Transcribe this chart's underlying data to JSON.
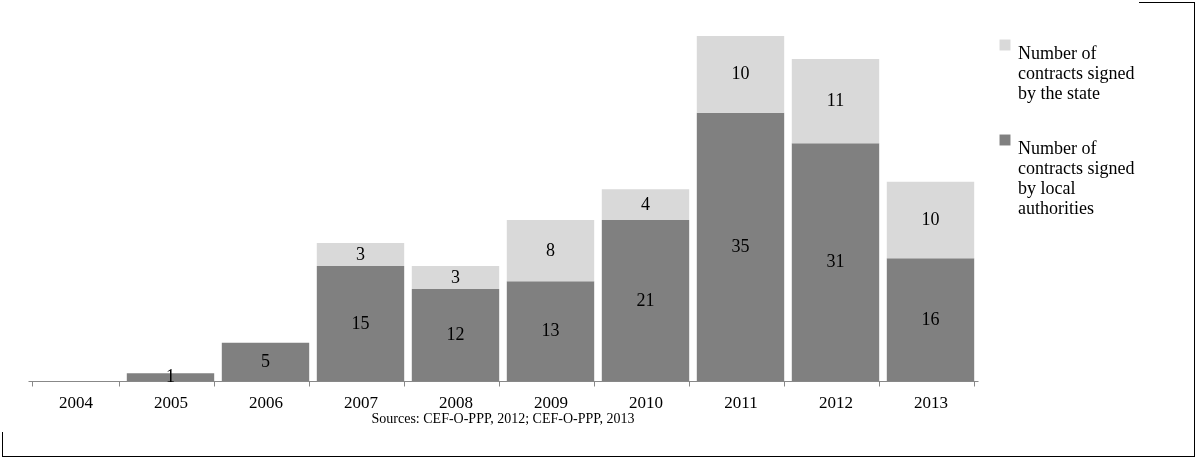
{
  "chart_data": {
    "type": "bar",
    "stacked": true,
    "data_labels": true,
    "legend": "right",
    "categories": [
      "2004",
      "2005",
      "2006",
      "2007",
      "2008",
      "2009",
      "2010",
      "2011",
      "2012",
      "2013"
    ],
    "series": [
      {
        "name": "Number of contracts signed by local authorities",
        "color": "#808080",
        "values": [
          null,
          1,
          5,
          15,
          12,
          13,
          21,
          35,
          31,
          16
        ]
      },
      {
        "name": "Number of contracts signed by the state",
        "color": "#d9d9d9",
        "values": [
          null,
          null,
          null,
          3,
          3,
          8,
          4,
          10,
          11,
          10
        ]
      }
    ],
    "annotations": [
      "Sources: CEF-O-PPP, 2012; CEF-O-PPP, 2013"
    ]
  }
}
